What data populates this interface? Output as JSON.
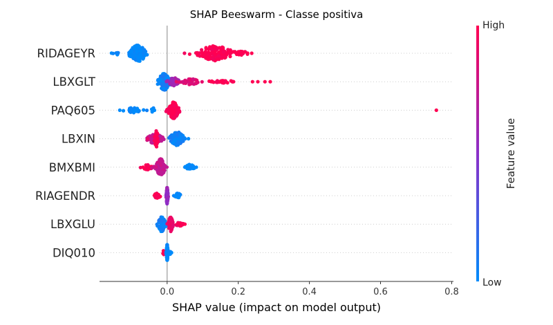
{
  "chart_data": {
    "type": "scatter",
    "subtype": "shap-beeswarm",
    "title": "SHAP Beeswarm - Classe positiva",
    "xlabel": "SHAP value (impact on model output)",
    "xlim": [
      -0.19,
      0.805
    ],
    "xticks": [
      0.0,
      0.2,
      0.4,
      0.6,
      0.8
    ],
    "xtick_labels": [
      "0.0",
      "0.2",
      "0.4",
      "0.6",
      "0.8"
    ],
    "zero_line": 0.0,
    "grid": "dotted horizontal row guides",
    "colorbar": {
      "title": "Feature value",
      "high_label": "High",
      "low_label": "Low",
      "high_color": "#ff0052",
      "mid_color": "#8b2fc9",
      "low_color": "#008bfb"
    },
    "features": [
      {
        "name": "RIDAGEYR",
        "clusters": [
          {
            "center": -0.082,
            "spread": 0.022,
            "count": 120,
            "height": 1.0,
            "color": 0.0
          },
          {
            "center": -0.145,
            "spread": 0.009,
            "count": 8,
            "height": 0.25,
            "color": 0.0
          },
          {
            "center": 0.135,
            "spread": 0.045,
            "count": 150,
            "height": 0.9,
            "color": 1.0
          },
          {
            "center": 0.21,
            "spread": 0.018,
            "count": 18,
            "height": 0.25,
            "color": 1.0
          }
        ],
        "extremes": [
          {
            "x": 0.238,
            "color": 1.0
          }
        ]
      },
      {
        "name": "LBXGLT",
        "clusters": [
          {
            "center": -0.008,
            "spread": 0.016,
            "count": 110,
            "height": 1.0,
            "color": 0.05
          },
          {
            "center": 0.02,
            "spread": 0.015,
            "count": 40,
            "height": 0.5,
            "color": 0.6
          },
          {
            "center": 0.065,
            "spread": 0.025,
            "count": 45,
            "height": 0.35,
            "color": 0.85
          },
          {
            "center": 0.155,
            "spread": 0.04,
            "count": 30,
            "height": 0.15,
            "color": 1.0
          }
        ],
        "extremes": [
          {
            "x": 0.24,
            "color": 1.0
          },
          {
            "x": 0.255,
            "color": 1.0
          },
          {
            "x": 0.275,
            "color": 1.0
          },
          {
            "x": 0.29,
            "color": 1.0
          }
        ]
      },
      {
        "name": "PAQ605",
        "clusters": [
          {
            "center": -0.095,
            "spread": 0.022,
            "count": 30,
            "height": 0.3,
            "color": 0.0
          },
          {
            "center": -0.04,
            "spread": 0.005,
            "count": 8,
            "height": 0.3,
            "color": 0.0
          },
          {
            "center": 0.018,
            "spread": 0.013,
            "count": 200,
            "height": 1.0,
            "color": 1.0
          }
        ],
        "extremes": [
          {
            "x": -0.133,
            "color": 0.0
          },
          {
            "x": 0.757,
            "color": 1.0
          }
        ]
      },
      {
        "name": "LBXIN",
        "clusters": [
          {
            "center": -0.035,
            "spread": 0.02,
            "count": 80,
            "height": 0.6,
            "color": 0.75
          },
          {
            "center": -0.03,
            "spread": 0.005,
            "count": 30,
            "height": 1.0,
            "color": 1.0
          },
          {
            "center": 0.028,
            "spread": 0.018,
            "count": 90,
            "height": 0.85,
            "color": 0.05
          }
        ],
        "extremes": [
          {
            "x": -0.055,
            "color": 0.9
          },
          {
            "x": 0.06,
            "color": 0.0
          }
        ]
      },
      {
        "name": "BMXBMI",
        "clusters": [
          {
            "center": -0.055,
            "spread": 0.012,
            "count": 30,
            "height": 0.3,
            "color": 1.0
          },
          {
            "center": -0.018,
            "spread": 0.012,
            "count": 100,
            "height": 1.0,
            "color": 0.75
          },
          {
            "center": 0.065,
            "spread": 0.012,
            "count": 35,
            "height": 0.35,
            "color": 0.0
          }
        ],
        "extremes": [
          {
            "x": -0.068,
            "color": 1.0
          },
          {
            "x": 0.05,
            "color": 0.0
          },
          {
            "x": 0.082,
            "color": 0.0
          }
        ]
      },
      {
        "name": "RIAGENDR",
        "clusters": [
          {
            "center": -0.028,
            "spread": 0.008,
            "count": 22,
            "height": 0.3,
            "color": 1.0
          },
          {
            "center": 0.0,
            "spread": 0.002,
            "count": 130,
            "height": 1.0,
            "color": 0.55
          },
          {
            "center": 0.03,
            "spread": 0.008,
            "count": 22,
            "height": 0.3,
            "color": 0.0
          }
        ],
        "extremes": []
      },
      {
        "name": "LBXGLU",
        "clusters": [
          {
            "center": -0.015,
            "spread": 0.01,
            "count": 80,
            "height": 0.9,
            "color": 0.05
          },
          {
            "center": 0.01,
            "spread": 0.006,
            "count": 60,
            "height": 0.9,
            "color": 0.9
          },
          {
            "center": 0.035,
            "spread": 0.01,
            "count": 30,
            "height": 0.25,
            "color": 0.95
          }
        ],
        "extremes": [
          {
            "x": 0.05,
            "color": 1.0
          }
        ]
      },
      {
        "name": "DIQ010",
        "clusters": [
          {
            "center": -0.01,
            "spread": 0.003,
            "count": 10,
            "height": 0.25,
            "color": 1.0
          },
          {
            "center": 0.0,
            "spread": 0.002,
            "count": 100,
            "height": 1.0,
            "color": 0.0
          },
          {
            "center": 0.008,
            "spread": 0.004,
            "count": 10,
            "height": 0.2,
            "color": 0.0
          }
        ],
        "extremes": []
      }
    ]
  }
}
